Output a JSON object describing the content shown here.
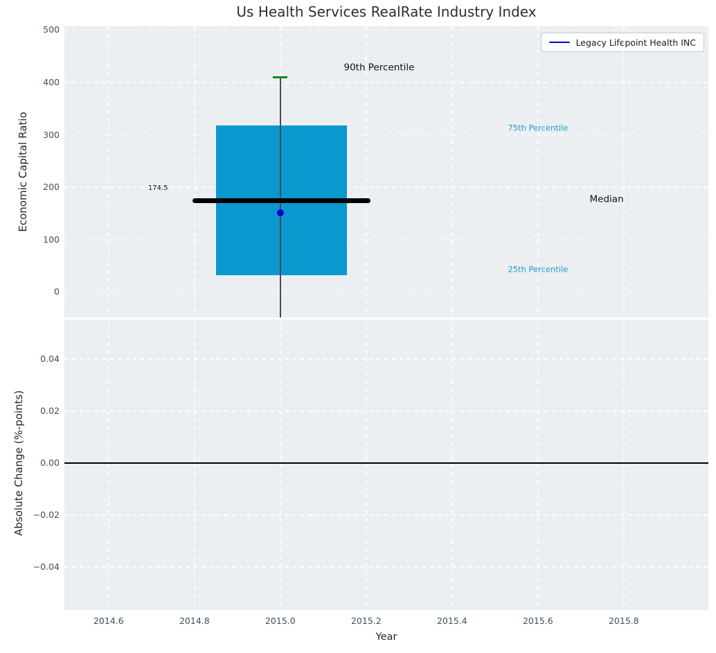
{
  "title": "Us Health Services RealRate Industry Index",
  "legend": {
    "label": "Legacy Lifepoint Health INC"
  },
  "colors": {
    "axes_bg": "#eceff1",
    "grid": "#ffffff",
    "box_fill": "#0999ce",
    "median_line": "#000000",
    "p90_cap": "#0e8b0e",
    "company_point": "#0000dd",
    "legend_line": "#0000dd",
    "whisker": "#4a4a4a",
    "tick_label": "#3d4f63",
    "axis_label": "#262626",
    "title_color": "#2e2e2e",
    "percentile_label": "#1f9ccd",
    "annotation_dark": "#111111",
    "zero_line": "#000000"
  },
  "chart_data": [
    {
      "type": "box",
      "subplot": "top",
      "title": "Us Health Services RealRate Industry Index",
      "ylabel": "Economic Capital Ratio",
      "xlabel": "",
      "ylim": [
        -48.5,
        507
      ],
      "xlim": [
        2014.497,
        2015.997
      ],
      "grid": true,
      "yticks": [
        {
          "v": 0,
          "label": "0"
        },
        {
          "v": 100,
          "label": "100"
        },
        {
          "v": 200,
          "label": "200"
        },
        {
          "v": 300,
          "label": "300"
        },
        {
          "v": 400,
          "label": "400"
        },
        {
          "v": 500,
          "label": "500"
        }
      ],
      "box": {
        "x_center": 2015.0,
        "p90": 410,
        "p75": 318,
        "median": 174.5,
        "p25": 32,
        "whisker_low_clipped_at_axis_bottom": -48.5,
        "box_x_span": [
          2014.85,
          2015.155
        ],
        "median_x_span": [
          2014.795,
          2015.21
        ]
      },
      "company_point": {
        "name": "Legacy Lifepoint Health INC",
        "x": 2015.0,
        "y": 151
      },
      "annotations": [
        {
          "text": "90th Percentile",
          "x": 2015.23,
          "y": 427,
          "color_key": "annotation_dark",
          "size": 13.5
        },
        {
          "text": "75th Percentile",
          "x": 2015.6,
          "y": 312,
          "color_key": "percentile_label",
          "size": 11.5
        },
        {
          "text": "Median",
          "x": 2015.76,
          "y": 176.5,
          "color_key": "annotation_dark",
          "size": 13.5
        },
        {
          "text": "25th Percentile",
          "x": 2015.6,
          "y": 43,
          "color_key": "percentile_label",
          "size": 11.5
        },
        {
          "text": "174.5",
          "x": 2014.715,
          "y": 198,
          "color_key": "annotation_dark",
          "size": 10
        }
      ]
    },
    {
      "type": "line",
      "subplot": "bottom",
      "ylabel": "Absolute Change (%-points)",
      "xlabel": "Year",
      "ylim": [
        -0.0565,
        0.0552
      ],
      "xlim": [
        2014.497,
        2015.997
      ],
      "grid": true,
      "zero_line": 0.0,
      "series": [],
      "yticks": [
        {
          "v": 0.04,
          "label": "0.04"
        },
        {
          "v": 0.02,
          "label": "0.02"
        },
        {
          "v": 0.0,
          "label": "0.00"
        },
        {
          "v": -0.02,
          "label": "−0.02"
        },
        {
          "v": -0.04,
          "label": "−0.04"
        }
      ],
      "xticks": [
        {
          "v": 2014.6,
          "label": "2014.6"
        },
        {
          "v": 2014.8,
          "label": "2014.8"
        },
        {
          "v": 2015.0,
          "label": "2015.0"
        },
        {
          "v": 2015.2,
          "label": "2015.2"
        },
        {
          "v": 2015.4,
          "label": "2015.4"
        },
        {
          "v": 2015.6,
          "label": "2015.6"
        },
        {
          "v": 2015.8,
          "label": "2015.8"
        }
      ]
    }
  ]
}
